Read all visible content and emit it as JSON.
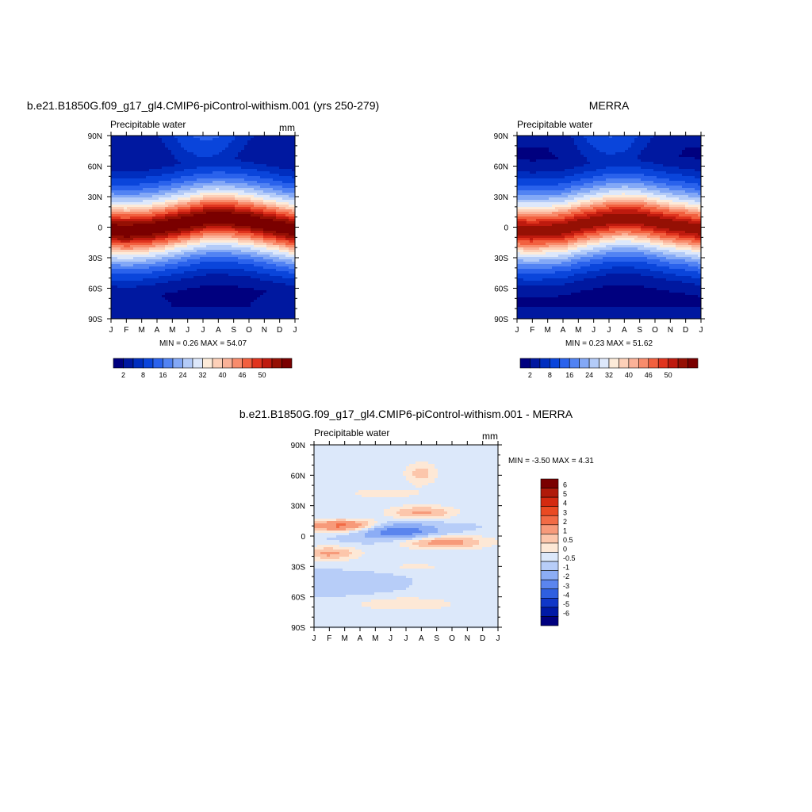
{
  "chart_data": [
    {
      "type": "heatmap",
      "title": "b.e21.B1850G.f09_g17_gl4.CMIP6-piControl-withism.001 (yrs 250-279)",
      "subtitle": "Precipitable water",
      "units": "mm",
      "x_ticks": [
        "J",
        "F",
        "M",
        "A",
        "M",
        "J",
        "J",
        "A",
        "S",
        "O",
        "N",
        "D",
        "J"
      ],
      "y_ticks": [
        "90N",
        "60N",
        "30N",
        "0",
        "30S",
        "60S",
        "90S"
      ],
      "stats": "MIN =   0.26 MAX =  54.07",
      "colorbar": {
        "orientation": "horizontal",
        "labels": [
          "2",
          "8",
          "16",
          "24",
          "32",
          "40",
          "46",
          "50"
        ],
        "colors": [
          "#00007f",
          "#0018a0",
          "#002ebf",
          "#0a45db",
          "#2a62ec",
          "#5283f3",
          "#83a8f6",
          "#b3cbf8",
          "#dde8fb",
          "#fdebd9",
          "#fdd0b8",
          "#fbb298",
          "#f88c6c",
          "#f2603f",
          "#e0341e",
          "#be1a0e",
          "#951004",
          "#7a0000"
        ]
      },
      "field": {
        "base": "precip",
        "itcz_peak": 54,
        "itcz_lat_by_month": [
          -3,
          -4,
          -3,
          -1,
          2,
          5,
          8,
          9,
          8,
          6,
          3,
          0,
          -3
        ],
        "north_90_by_month": [
          3,
          3,
          3,
          4,
          7,
          11,
          13,
          12,
          8,
          5,
          4,
          3,
          3
        ],
        "south_90_by_month": [
          3,
          3,
          3,
          3,
          2,
          2,
          2,
          2,
          2,
          2,
          3,
          3,
          3
        ]
      }
    },
    {
      "type": "heatmap",
      "title": "MERRA",
      "subtitle": "Precipitable water",
      "units": "",
      "x_ticks": [
        "J",
        "F",
        "M",
        "A",
        "M",
        "J",
        "J",
        "A",
        "S",
        "O",
        "N",
        "D",
        "J"
      ],
      "y_ticks": [
        "90N",
        "60N",
        "30N",
        "0",
        "30S",
        "60S",
        "90S"
      ],
      "stats": "MIN =   0.23 MAX =  51.62",
      "colorbar": {
        "orientation": "horizontal",
        "labels": [
          "2",
          "8",
          "16",
          "24",
          "32",
          "40",
          "46",
          "50"
        ],
        "colors": [
          "#00007f",
          "#0018a0",
          "#002ebf",
          "#0a45db",
          "#2a62ec",
          "#5283f3",
          "#83a8f6",
          "#b3cbf8",
          "#dde8fb",
          "#fdebd9",
          "#fdd0b8",
          "#fbb298",
          "#f88c6c",
          "#f2603f",
          "#e0341e",
          "#be1a0e",
          "#951004",
          "#7a0000"
        ]
      },
      "field": {
        "base": "precip",
        "itcz_peak": 51.5,
        "itcz_lat_by_month": [
          -3,
          -4,
          -3,
          -2,
          2,
          5,
          8,
          9,
          8,
          5,
          2,
          0,
          -3
        ],
        "north_90_by_month": [
          2,
          2,
          2,
          3,
          6,
          10,
          12,
          11,
          7,
          4,
          3,
          2,
          2
        ],
        "south_90_by_month": [
          2,
          2,
          2,
          2,
          2,
          2,
          2,
          2,
          2,
          2,
          2,
          2,
          2
        ]
      }
    },
    {
      "type": "heatmap",
      "title": "b.e21.B1850G.f09_g17_gl4.CMIP6-piControl-withism.001 - MERRA",
      "subtitle": "Precipitable water",
      "units": "mm",
      "x_ticks": [
        "J",
        "F",
        "M",
        "A",
        "M",
        "J",
        "J",
        "A",
        "S",
        "O",
        "N",
        "D",
        "J"
      ],
      "y_ticks": [
        "90N",
        "60N",
        "30N",
        "0",
        "30S",
        "60S",
        "90S"
      ],
      "stats": "MIN =  -3.50 MAX =   4.31",
      "colorbar": {
        "orientation": "vertical",
        "labels": [
          "6",
          "5",
          "4",
          "3",
          "2",
          "1",
          "0.5",
          "0",
          "-0.5",
          "-1",
          "-2",
          "-3",
          "-4",
          "-5",
          "-6"
        ],
        "colors": [
          "#7a0000",
          "#b01a0a",
          "#d42a10",
          "#ea4a22",
          "#f26b45",
          "#f79a7a",
          "#fcc6ab",
          "#fde8d6",
          "#dce8fa",
          "#b7cdf8",
          "#8cadf5",
          "#5b85ee",
          "#2f5fe0",
          "#1037c8",
          "#0019a6",
          "#00007f"
        ]
      },
      "field": {
        "base": "diff",
        "background": 0.7
      }
    }
  ]
}
